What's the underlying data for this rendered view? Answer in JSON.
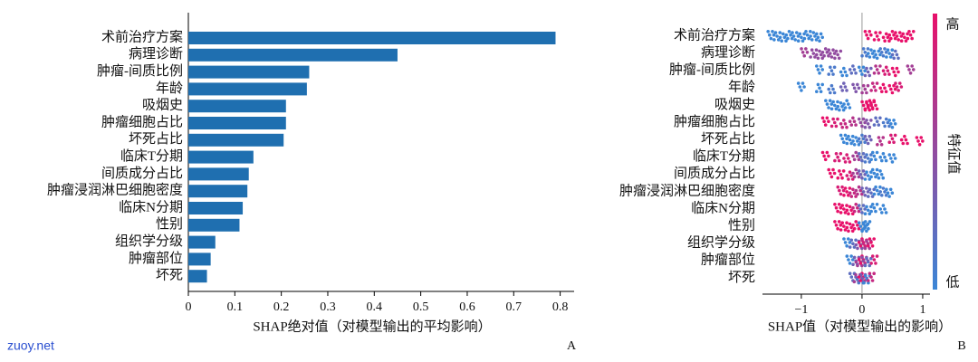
{
  "chart_data": [
    {
      "type": "barh",
      "panel": "A",
      "xlabel": "SHAP绝对值（对模型输出的平均影响）",
      "color": "#1f6fb0",
      "categories": [
        "术前治疗方案",
        "病理诊断",
        "肿瘤-间质比例",
        "年龄",
        "吸烟史",
        "肿瘤细胞占比",
        "坏死占比",
        "临床T分期",
        "间质成分占比",
        "肿瘤浸润淋巴细胞密度",
        "临床N分期",
        "性别",
        "组织学分级",
        "肿瘤部位",
        "坏死"
      ],
      "values": [
        0.79,
        0.45,
        0.26,
        0.255,
        0.21,
        0.21,
        0.205,
        0.14,
        0.13,
        0.127,
        0.117,
        0.11,
        0.058,
        0.048,
        0.04
      ],
      "xlim": [
        0,
        0.83
      ],
      "xticks": [
        0,
        0.1,
        0.2,
        0.3,
        0.4,
        0.5,
        0.6,
        0.7,
        0.8
      ]
    },
    {
      "type": "beeswarm",
      "panel": "B",
      "xlabel": "SHAP值（对模型输出的影响）",
      "colormap": [
        "#3b86d6",
        "#e8106a"
      ],
      "colorbar": {
        "high": "高",
        "low": "低",
        "label": "特征值"
      },
      "categories": [
        "术前治疗方案",
        "病理诊断",
        "肿瘤-间质比例",
        "年龄",
        "吸烟史",
        "肿瘤细胞占比",
        "坏死占比",
        "临床T分期",
        "间质成分占比",
        "肿瘤浸润淋巴细胞密度",
        "临床N分期",
        "性别",
        "组织学分级",
        "肿瘤部位",
        "坏死"
      ],
      "values": [
        [
          -1.5,
          -1.4,
          -1.3,
          -1.2,
          -1.1,
          -1.0,
          -0.9,
          -0.8,
          -0.7,
          0.1,
          0.25,
          0.4,
          0.5,
          0.6,
          0.7,
          0.8
        ],
        [
          -0.95,
          -0.8,
          -0.7,
          -0.6,
          -0.5,
          -0.4,
          0.05,
          0.15,
          0.25,
          0.35,
          0.45,
          0.55
        ],
        [
          -0.7,
          -0.5,
          -0.3,
          -0.15,
          0,
          0.1,
          0.25,
          0.4,
          0.55,
          0.8
        ],
        [
          -1.0,
          -0.7,
          -0.5,
          -0.3,
          -0.1,
          0.05,
          0.2,
          0.35,
          0.5,
          0.6
        ],
        [
          -0.55,
          -0.45,
          -0.35,
          -0.25,
          0.05,
          0.1,
          0.15,
          0.2
        ],
        [
          -0.6,
          -0.45,
          -0.3,
          -0.15,
          0,
          0.1,
          0.25,
          0.4,
          0.5
        ],
        [
          -0.3,
          -0.2,
          -0.1,
          0,
          0.1,
          0.3,
          0.5,
          0.7,
          0.95
        ],
        [
          -0.6,
          -0.4,
          -0.25,
          -0.1,
          0,
          0.1,
          0.2,
          0.35,
          0.5
        ],
        [
          -0.5,
          -0.35,
          -0.2,
          -0.1,
          0,
          0.1,
          0.2,
          0.3
        ],
        [
          -0.35,
          -0.25,
          -0.15,
          -0.05,
          0.05,
          0.15,
          0.25,
          0.35,
          0.45
        ],
        [
          -0.4,
          -0.3,
          -0.2,
          -0.1,
          0,
          0.1,
          0.2,
          0.35
        ],
        [
          -0.4,
          -0.3,
          -0.2,
          -0.1,
          0.0,
          0.05,
          0.08
        ],
        [
          -0.25,
          -0.15,
          -0.05,
          0,
          0.05,
          0.1,
          0.15
        ],
        [
          -0.2,
          -0.1,
          -0.05,
          0,
          0.05,
          0.1,
          0.2
        ],
        [
          -0.15,
          -0.08,
          -0.03,
          0,
          0.03,
          0.08,
          0.15
        ]
      ],
      "feature_values": [
        [
          0,
          0,
          0,
          0,
          0,
          0,
          0,
          0,
          0,
          1,
          1,
          1,
          1,
          1,
          1,
          1
        ],
        [
          0.6,
          0.5,
          0.5,
          0.5,
          0.5,
          0.5,
          0.1,
          0,
          0,
          0.1,
          0,
          0.2
        ],
        [
          0,
          0.1,
          0,
          0.2,
          0,
          0.3,
          0.7,
          0.9,
          1,
          0.6
        ],
        [
          0,
          0,
          0.1,
          0.3,
          0.4,
          0.6,
          0.8,
          1,
          1,
          0.9
        ],
        [
          0,
          0,
          0,
          0,
          1,
          1,
          1,
          1
        ],
        [
          1,
          0.9,
          0.8,
          0.7,
          0.5,
          0.4,
          0.2,
          0.1,
          0
        ],
        [
          0,
          0,
          0,
          0.1,
          0.3,
          0.7,
          0.9,
          1,
          1
        ],
        [
          1,
          0.9,
          0.9,
          0.6,
          0.2,
          0.1,
          0,
          0,
          0
        ],
        [
          1,
          1,
          0.9,
          0.6,
          0.3,
          0,
          0,
          0
        ],
        [
          0.9,
          1,
          0.8,
          0.7,
          0.3,
          0.2,
          0,
          0.1,
          0
        ],
        [
          1,
          1,
          1,
          0.8,
          0.2,
          0,
          0,
          0
        ],
        [
          1,
          1,
          1,
          1,
          0,
          0,
          0
        ],
        [
          0,
          0.2,
          0.4,
          1,
          0.8,
          0.6,
          1
        ],
        [
          0,
          0.3,
          0.6,
          1,
          0.5,
          0.2,
          0.9
        ],
        [
          0.2,
          0.6,
          0.1,
          1,
          0.4,
          0,
          0.8
        ]
      ],
      "xlim": [
        -1.64,
        1.12
      ],
      "xticks": [
        {
          "value": -1,
          "label": "−1"
        },
        0,
        1
      ]
    }
  ],
  "watermark": "zuoy.net"
}
